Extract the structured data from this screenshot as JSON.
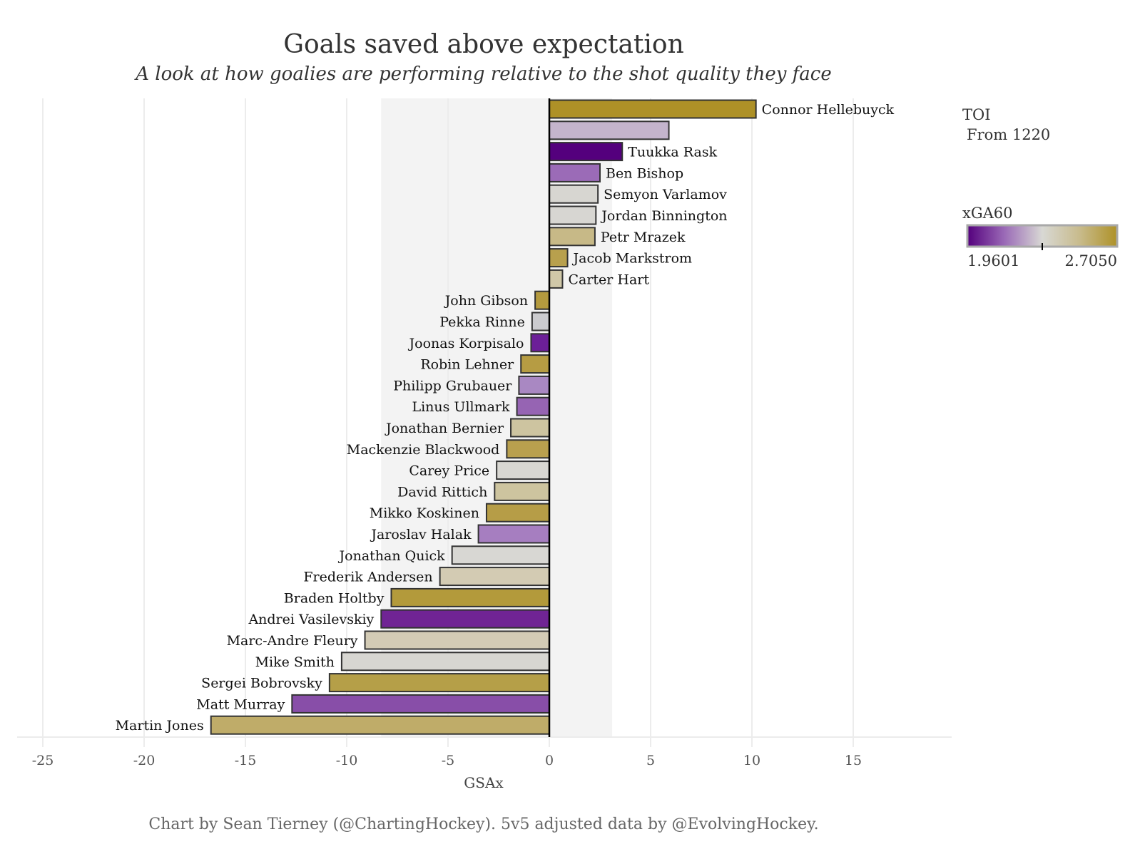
{
  "chart_data": {
    "type": "bar",
    "orientation": "horizontal",
    "title": "Goals saved above expectation",
    "subtitle": "A look at how goalies are performing relative to the shot quality they face",
    "xlabel": "GSAx",
    "ylabel": "",
    "xlim": [
      -26.3,
      19.3
    ],
    "xticks": [
      -25,
      -20,
      -15,
      -10,
      -5,
      0,
      5,
      10,
      15
    ],
    "xtick_labels": [
      "-25",
      "-20",
      "-15",
      "-10",
      "-5",
      "0",
      "5",
      "10",
      "15"
    ],
    "grid": true,
    "shaded_band": [
      -8.3,
      3.1
    ],
    "caption": "Chart by Sean Tierney (@ChartingHockey). 5v5 adjusted data by @EvolvingHockey.",
    "bars": [
      {
        "name": "Connor Hellebuyck",
        "value": 10.2,
        "color": "#ae9127"
      },
      {
        "name": "",
        "value": 5.9,
        "color": "#c4b4cc"
      },
      {
        "name": "Tuukka Rask",
        "value": 3.6,
        "color": "#54007d"
      },
      {
        "name": "Ben Bishop",
        "value": 2.5,
        "color": "#9b6bb7"
      },
      {
        "name": "Semyon Varlamov",
        "value": 2.4,
        "color": "#d7d6d1"
      },
      {
        "name": "Jordan Binnington",
        "value": 2.3,
        "color": "#d7d6d2"
      },
      {
        "name": "Petr Mrazek",
        "value": 2.25,
        "color": "#c7b987"
      },
      {
        "name": "Jacob Markstrom",
        "value": 0.9,
        "color": "#b8a04d"
      },
      {
        "name": "Carter Hart",
        "value": 0.65,
        "color": "#d0c8a8"
      },
      {
        "name": "John Gibson",
        "value": -0.7,
        "color": "#b49a3e"
      },
      {
        "name": "Pekka Rinne",
        "value": -0.85,
        "color": "#cbcbce"
      },
      {
        "name": "Joonas Korpisalo",
        "value": -0.9,
        "color": "#6c1f98"
      },
      {
        "name": "Robin Lehner",
        "value": -1.4,
        "color": "#b69c43"
      },
      {
        "name": "Philipp Grubauer",
        "value": -1.5,
        "color": "#a988c2"
      },
      {
        "name": "Linus Ullmark",
        "value": -1.6,
        "color": "#9664b3"
      },
      {
        "name": "Jonathan Bernier",
        "value": -1.9,
        "color": "#cdc4a0"
      },
      {
        "name": "Mackenzie Blackwood",
        "value": -2.1,
        "color": "#b9a04e"
      },
      {
        "name": "Carey Price",
        "value": -2.6,
        "color": "#d8d7d2"
      },
      {
        "name": "David Rittich",
        "value": -2.7,
        "color": "#cdc49f"
      },
      {
        "name": "Mikko Koskinen",
        "value": -3.1,
        "color": "#b69d47"
      },
      {
        "name": "Jaroslav Halak",
        "value": -3.5,
        "color": "#a67ec0"
      },
      {
        "name": "Jonathan Quick",
        "value": -4.8,
        "color": "#d8d7d3"
      },
      {
        "name": "Frederik Andersen",
        "value": -5.4,
        "color": "#d3cbb3"
      },
      {
        "name": "Braden Holtby",
        "value": -7.8,
        "color": "#b39a3b"
      },
      {
        "name": "Andrei Vasilevskiy",
        "value": -8.3,
        "color": "#702494"
      },
      {
        "name": "Marc-Andre Fleury",
        "value": -9.1,
        "color": "#d3cbb5"
      },
      {
        "name": "Mike Smith",
        "value": -10.25,
        "color": "#d7d6d1"
      },
      {
        "name": "Sergei Bobrovsky",
        "value": -10.85,
        "color": "#b59f48"
      },
      {
        "name": "Matt Murray",
        "value": -12.7,
        "color": "#884ea8"
      },
      {
        "name": "Martin Jones",
        "value": -16.7,
        "color": "#bfac69"
      }
    ],
    "legend": {
      "placement": "right",
      "size_title": "TOI",
      "size_subtitle": "From 1220",
      "color_title": "xGA60",
      "color_min_label": "1.9601",
      "color_max_label": "2.7050",
      "color_min": 1.9601,
      "color_max": 2.705,
      "color_midpoint_fraction": 0.5,
      "gradient_colors": [
        "#54007d",
        "#9b6bb7",
        "#d8d8d4",
        "#c8bb8c",
        "#ae9127"
      ]
    }
  },
  "colors": {
    "background": "#ffffff",
    "panel_band": "#f3f3f3",
    "grid": "#ececec",
    "bar_outline": "#333333",
    "zero_line": "#000000"
  }
}
